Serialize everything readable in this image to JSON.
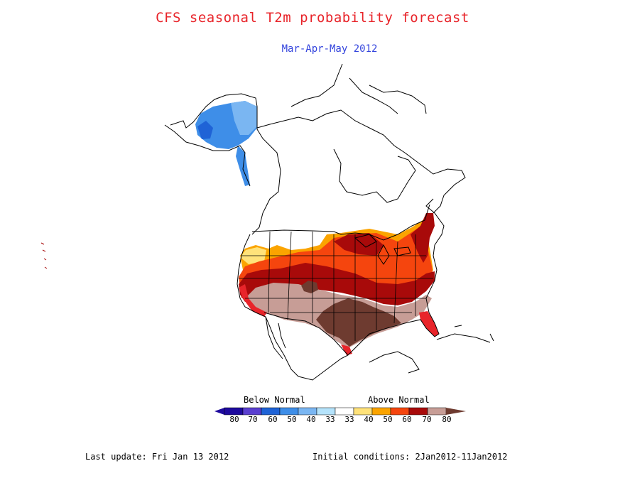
{
  "title": "CFS seasonal T2m probability forecast",
  "subtitle": "Mar-Apr-May 2012",
  "colors": {
    "title": "#e8242a",
    "subtitle": "#3344dd",
    "coast": "#000000",
    "below_80": "#1e0a9e",
    "below_70": "#5a3fd0",
    "below_60": "#1f63d6",
    "below_50": "#3e8ee8",
    "below_40": "#7ab6f2",
    "below_33": "#b5e3fb",
    "normal": "#ffffff",
    "above_40": "#ffe27a",
    "above_50": "#fba400",
    "above_60": "#f5450e",
    "above_70": "#a80a0a",
    "above_80": "#c79d96",
    "above_max": "#6e3b30"
  },
  "legend": {
    "below_label": "Below Normal",
    "above_label": "Above Normal",
    "ticks": [
      "80",
      "70",
      "60",
      "50",
      "40",
      "33",
      "33",
      "40",
      "50",
      "60",
      "70",
      "80"
    ]
  },
  "footer": {
    "last_update": "Last update: Fri Jan 13 2012",
    "initial_conditions": "Initial conditions: 2Jan2012-11Jan2012"
  }
}
